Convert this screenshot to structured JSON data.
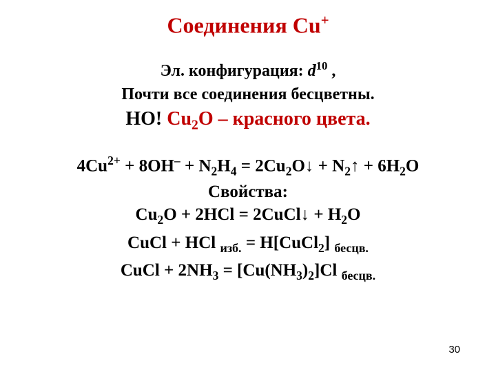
{
  "title": {
    "prefix": "Соединения ",
    "element": "Cu",
    "charge": "+"
  },
  "config": {
    "label": "Эл. конфигурация: ",
    "orbital_letter": "d",
    "orbital_power": "10",
    "tail": " ,"
  },
  "colorless": "Почти все соединения бесцветны.",
  "but": {
    "but_word": "НО! ",
    "formula_cu": "Cu",
    "formula_sub": "2",
    "formula_o": "O",
    "tail": " – красного цвета."
  },
  "eq1": {
    "p1": "4Cu",
    "sup1": "2+",
    "p2": " + 8OH",
    "sup2": "–",
    "p3": " + N",
    "sub1": "2",
    "p4": "H",
    "sub2": "4",
    "p5": " = 2Cu",
    "sub3": "2",
    "p6": "O↓ + N",
    "sub4": "2",
    "p7": "↑ + 6H",
    "sub5": "2",
    "p8": "O"
  },
  "props_title": "Свойства:",
  "eq2": {
    "p1": "Cu",
    "sub1": "2",
    "p2": "O + 2HCl = 2CuCl↓ + H",
    "sub2": "2",
    "p3": "O"
  },
  "eq3": {
    "p1": "CuCl + HCl ",
    "lbl1": "изб.",
    "p2": " = H[CuCl",
    "sub1": "2",
    "p3": "] ",
    "lbl2": "бесцв."
  },
  "eq4": {
    "p1": "CuCl + 2NH",
    "sub1": "3",
    "p2": " = [Cu(NH",
    "sub2": "3",
    "p3": ")",
    "sub3": "2",
    "p4": "]Cl ",
    "lbl1": "бесцв."
  },
  "page_number": "30"
}
